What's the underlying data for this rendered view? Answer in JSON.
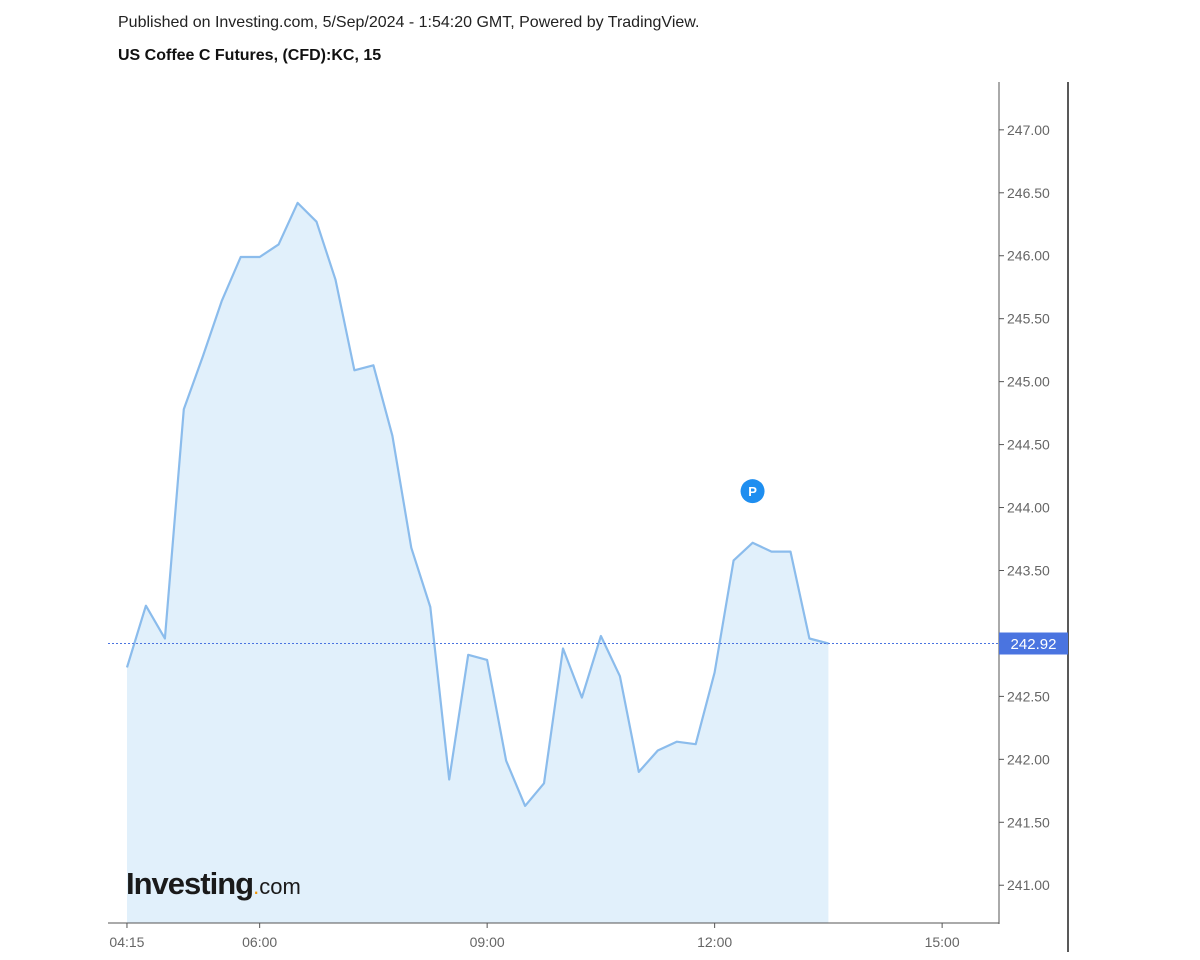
{
  "header": {
    "published": "Published on Investing.com, 5/Sep/2024 - 1:54:20 GMT, Powered by TradingView.",
    "symbol": "US Coffee C Futures, (CFD):KC, 15"
  },
  "logo": {
    "main": "Investing",
    "dot": ".",
    "suffix": "com"
  },
  "colors": {
    "line": "#8bbcec",
    "fill": "#e1f0fb",
    "axis": "#555555",
    "price_label_bg": "#4a74e0",
    "marker": "#1e8ef0"
  },
  "chart_data": {
    "type": "area",
    "interval_minutes": 15,
    "x_ticks": [
      "04:15",
      "06:00",
      "09:00",
      "12:00",
      "15:00"
    ],
    "y_ticks": [
      "247.00",
      "246.50",
      "246.00",
      "245.50",
      "245.00",
      "244.50",
      "244.00",
      "243.50",
      "242.50",
      "242.00",
      "241.50",
      "241.00"
    ],
    "ylim": [
      240.7,
      247.38
    ],
    "xlim": [
      "04:00",
      "15:45"
    ],
    "series": [
      {
        "x": [
          "04:15",
          "04:30",
          "04:45",
          "05:00",
          "05:15",
          "05:30",
          "05:45",
          "06:00",
          "06:15",
          "06:30",
          "06:45",
          "07:00",
          "07:15",
          "07:30",
          "07:45",
          "08:00",
          "08:15",
          "08:30",
          "08:45",
          "09:00",
          "09:15",
          "09:30",
          "09:45",
          "10:00",
          "10:15",
          "10:30",
          "10:45",
          "11:00",
          "11:15",
          "11:30",
          "11:45",
          "12:00",
          "12:15",
          "12:30",
          "12:45",
          "13:00",
          "13:15",
          "13:30"
        ],
        "values": [
          242.73,
          243.22,
          242.96,
          244.78,
          245.2,
          245.64,
          245.99,
          245.99,
          246.09,
          246.42,
          246.27,
          245.81,
          245.09,
          245.13,
          244.57,
          243.68,
          243.21,
          241.84,
          242.83,
          242.79,
          241.99,
          241.63,
          241.81,
          242.88,
          242.49,
          242.98,
          242.66,
          241.9,
          242.07,
          242.14,
          242.12,
          242.69,
          243.58,
          243.72,
          243.65,
          243.65,
          242.96,
          242.92
        ]
      }
    ],
    "last_price": 242.92,
    "last_price_label": "242.92",
    "markers": [
      {
        "x": "12:30",
        "y": 244.13,
        "label": "P"
      }
    ],
    "grid": false,
    "legend": "none"
  }
}
